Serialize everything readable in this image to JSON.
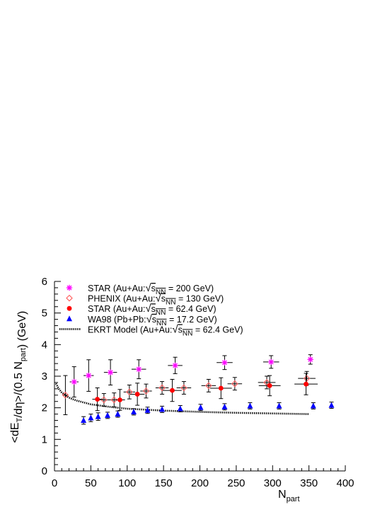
{
  "chart_data": {
    "type": "scatter",
    "title": "",
    "xlabel": "N",
    "xlabel_sub": "part",
    "ylabel": "<dE_T/dη>/(0.5 N_part) (GeV)",
    "xlim": [
      0,
      400
    ],
    "ylim": [
      0,
      6
    ],
    "xticks": [
      0,
      50,
      100,
      150,
      200,
      250,
      300,
      350,
      400
    ],
    "yticks": [
      0,
      1,
      2,
      3,
      4,
      5,
      6
    ],
    "grid": false,
    "legend_position": "top-left",
    "legend": [
      {
        "prefix": "STAR (Au+Au:",
        "root": "s",
        "sub": "NN",
        "suffix": " = 200 GeV)"
      },
      {
        "prefix": "PHENIX (Au+Au:",
        "root": "s",
        "sub": "NN",
        "suffix": " = 130 GeV)"
      },
      {
        "prefix": "STAR (Au+Au:",
        "root": "s",
        "sub": "NN",
        "suffix": " = 62.4 GeV)"
      },
      {
        "prefix": "WA98 (Pb+Pb:",
        "root": "s",
        "sub": "NN",
        "suffix": " = 17.2 GeV)"
      },
      {
        "prefix": "EKRT Model (Au+Au:",
        "root": "s",
        "sub": "NN",
        "suffix": " = 62.4 GeV)"
      }
    ],
    "series": [
      {
        "marker": "star",
        "color": "#ff00ff",
        "err_color": "#000000",
        "points": [
          {
            "x": 27,
            "y": 2.82,
            "xerr": 6,
            "yerr": 0.48
          },
          {
            "x": 47,
            "y": 3.02,
            "xerr": 7,
            "yerr": 0.5
          },
          {
            "x": 77,
            "y": 3.12,
            "xerr": 9,
            "yerr": 0.4
          },
          {
            "x": 116,
            "y": 3.22,
            "xerr": 10,
            "yerr": 0.3
          },
          {
            "x": 166,
            "y": 3.34,
            "xerr": 10,
            "yerr": 0.26
          },
          {
            "x": 234,
            "y": 3.43,
            "xerr": 11,
            "yerr": 0.22
          },
          {
            "x": 298,
            "y": 3.45,
            "xerr": 11,
            "yerr": 0.2
          },
          {
            "x": 352,
            "y": 3.53,
            "xerr": 3,
            "yerr": 0.15
          }
        ]
      },
      {
        "marker": "open-diamond",
        "color": "#ff6666",
        "err_color": "#000000",
        "points": [
          {
            "x": 15,
            "y": 2.4,
            "xerr": 3,
            "yerr": 0.62
          },
          {
            "x": 68,
            "y": 2.25,
            "xerr": 8,
            "yerr": 0.2
          },
          {
            "x": 82,
            "y": 2.25,
            "xerr": 8,
            "yerr": 0.22
          },
          {
            "x": 103,
            "y": 2.5,
            "xerr": 8,
            "yerr": 0.22
          },
          {
            "x": 126,
            "y": 2.53,
            "xerr": 8,
            "yerr": 0.22
          },
          {
            "x": 148,
            "y": 2.63,
            "xerr": 9,
            "yerr": 0.2
          },
          {
            "x": 178,
            "y": 2.63,
            "xerr": 10,
            "yerr": 0.2
          },
          {
            "x": 212,
            "y": 2.7,
            "xerr": 10,
            "yerr": 0.2
          },
          {
            "x": 248,
            "y": 2.76,
            "xerr": 10,
            "yerr": 0.2
          },
          {
            "x": 292,
            "y": 2.8,
            "xerr": 12,
            "yerr": 0.2
          },
          {
            "x": 347,
            "y": 2.93,
            "xerr": 12,
            "yerr": 0.22
          }
        ]
      },
      {
        "marker": "circle",
        "color": "#ff0000",
        "err_color": "#000000",
        "points": [
          {
            "x": 59,
            "y": 2.27,
            "xerr": 7,
            "yerr": 0.36
          },
          {
            "x": 90,
            "y": 2.25,
            "xerr": 7,
            "yerr": 0.33
          },
          {
            "x": 114,
            "y": 2.43,
            "xerr": 10,
            "yerr": 0.35
          },
          {
            "x": 162,
            "y": 2.55,
            "xerr": 13,
            "yerr": 0.35
          },
          {
            "x": 229,
            "y": 2.62,
            "xerr": 15,
            "yerr": 0.33
          },
          {
            "x": 296,
            "y": 2.7,
            "xerr": 15,
            "yerr": 0.32
          },
          {
            "x": 346,
            "y": 2.75,
            "xerr": 16,
            "yerr": 0.34
          }
        ]
      },
      {
        "marker": "triangle",
        "color": "#0000ff",
        "err_color": "#000000",
        "points": [
          {
            "x": 40,
            "y": 1.6,
            "xerr": 0,
            "yerr": 0.12
          },
          {
            "x": 50,
            "y": 1.68,
            "xerr": 0,
            "yerr": 0.12
          },
          {
            "x": 60,
            "y": 1.72,
            "xerr": 0,
            "yerr": 0.12
          },
          {
            "x": 73,
            "y": 1.76,
            "xerr": 0,
            "yerr": 0.1
          },
          {
            "x": 87,
            "y": 1.8,
            "xerr": 0,
            "yerr": 0.1
          },
          {
            "x": 109,
            "y": 1.87,
            "xerr": 0,
            "yerr": 0.1
          },
          {
            "x": 128,
            "y": 1.92,
            "xerr": 0,
            "yerr": 0.1
          },
          {
            "x": 148,
            "y": 1.95,
            "xerr": 0,
            "yerr": 0.1
          },
          {
            "x": 173,
            "y": 1.97,
            "xerr": 0,
            "yerr": 0.1
          },
          {
            "x": 201,
            "y": 2.01,
            "xerr": 0,
            "yerr": 0.1
          },
          {
            "x": 234,
            "y": 2.03,
            "xerr": 0,
            "yerr": 0.1
          },
          {
            "x": 269,
            "y": 2.06,
            "xerr": 0,
            "yerr": 0.1
          },
          {
            "x": 309,
            "y": 2.06,
            "xerr": 0,
            "yerr": 0.1
          },
          {
            "x": 356,
            "y": 2.06,
            "xerr": 0,
            "yerr": 0.1
          },
          {
            "x": 381,
            "y": 2.08,
            "xerr": 0,
            "yerr": 0.1
          }
        ]
      },
      {
        "marker": "dotted-line",
        "color": "#000000",
        "points": [
          {
            "x": 2,
            "y": 2.77
          },
          {
            "x": 6,
            "y": 2.6
          },
          {
            "x": 10,
            "y": 2.48
          },
          {
            "x": 20,
            "y": 2.32
          },
          {
            "x": 30,
            "y": 2.23
          },
          {
            "x": 50,
            "y": 2.11
          },
          {
            "x": 75,
            "y": 2.03
          },
          {
            "x": 100,
            "y": 1.97
          },
          {
            "x": 150,
            "y": 1.91
          },
          {
            "x": 200,
            "y": 1.87
          },
          {
            "x": 250,
            "y": 1.84
          },
          {
            "x": 300,
            "y": 1.82
          },
          {
            "x": 350,
            "y": 1.8
          }
        ]
      }
    ]
  }
}
